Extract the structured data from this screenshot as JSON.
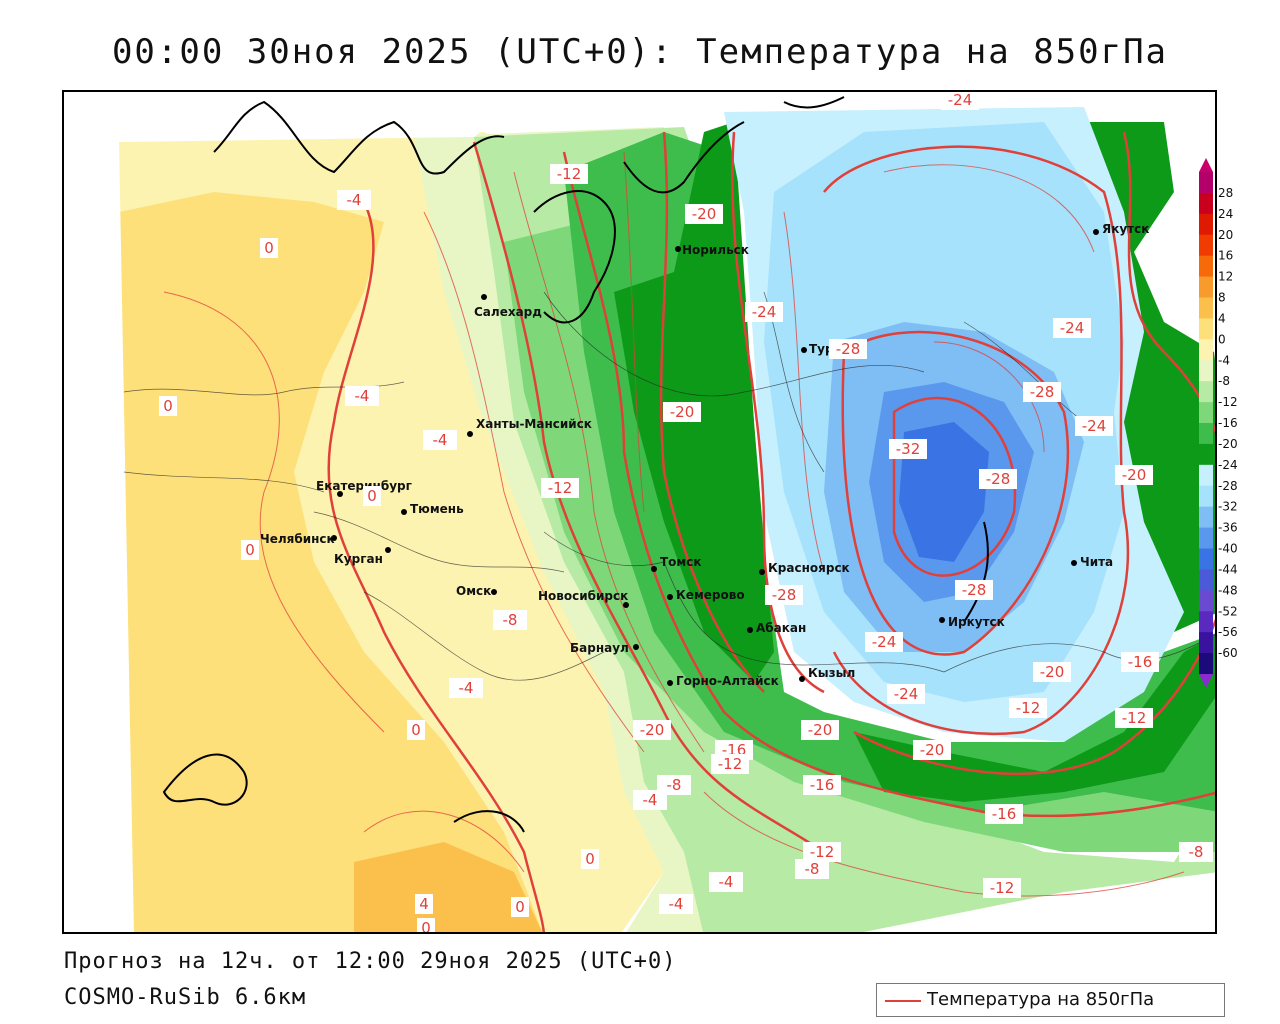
{
  "header": {
    "title": "00:00 30ноя 2025 (UTC+0): Температура на 850гПа"
  },
  "footer": {
    "forecast": "Прогноз на 12ч. от 12:00 29ноя 2025 (UTC+0)",
    "model": "COSMO-RuSib 6.6км"
  },
  "legend": {
    "label": "Температура на 850гПа",
    "line_color": "#e0403a"
  },
  "colorbar": {
    "ticks": [
      "28",
      "24",
      "20",
      "16",
      "12",
      "8",
      "4",
      "0",
      "-4",
      "-8",
      "-12",
      "-16",
      "-20",
      "-24",
      "-28",
      "-32",
      "-36",
      "-40",
      "-44",
      "-48",
      "-52",
      "-56",
      "-60"
    ],
    "colors": [
      "#b4006a",
      "#c8001e",
      "#e01a00",
      "#f03c00",
      "#f66a0a",
      "#f89a2c",
      "#fbc04c",
      "#fde07a",
      "#fdf3b0",
      "#e8f6c6",
      "#b7eaa4",
      "#7ed87a",
      "#3ebd4c",
      "#0c9a18",
      "#c7f0ff",
      "#a6e2fb",
      "#7fbdf5",
      "#5a98ee",
      "#3a74e4",
      "#4a5ad8",
      "#6a4ad0",
      "#5a2ac0",
      "#3a12a0",
      "#1a0a7a"
    ]
  },
  "cities": [
    {
      "name": "Якутск"
    },
    {
      "name": "Норильск"
    },
    {
      "name": "Салехард"
    },
    {
      "name": "Тура"
    },
    {
      "name": "Ханты-Мансийск"
    },
    {
      "name": "Екатеринбург"
    },
    {
      "name": "Тюмень"
    },
    {
      "name": "Челябинск"
    },
    {
      "name": "Курган"
    },
    {
      "name": "Омск"
    },
    {
      "name": "Новосибирск"
    },
    {
      "name": "Томск"
    },
    {
      "name": "Кемерово"
    },
    {
      "name": "Барнаул"
    },
    {
      "name": "Красноярск"
    },
    {
      "name": "Абакан"
    },
    {
      "name": "Кызыл"
    },
    {
      "name": "Горно-Алтайск"
    },
    {
      "name": "Иркутск"
    },
    {
      "name": "Чита"
    }
  ],
  "contour_labels": [
    "-24",
    "-4",
    "-12",
    "0",
    "-20",
    "-24",
    "-24",
    "-28",
    "0",
    "-4",
    "-28",
    "-24",
    "-20",
    "-32",
    "-4",
    "-20",
    "-28",
    "0",
    "-12",
    "0",
    "-28",
    "-8",
    "-28",
    "-24",
    "-16",
    "-4",
    "-20",
    "-24",
    "-12",
    "-12",
    "-20",
    "0",
    "-20",
    "-20",
    "-16",
    "-16",
    "-12",
    "-16",
    "-8",
    "-12",
    "0",
    "-4",
    "-8",
    "-8",
    "4",
    "0",
    "-4",
    "0",
    "-12",
    "-4"
  ]
}
